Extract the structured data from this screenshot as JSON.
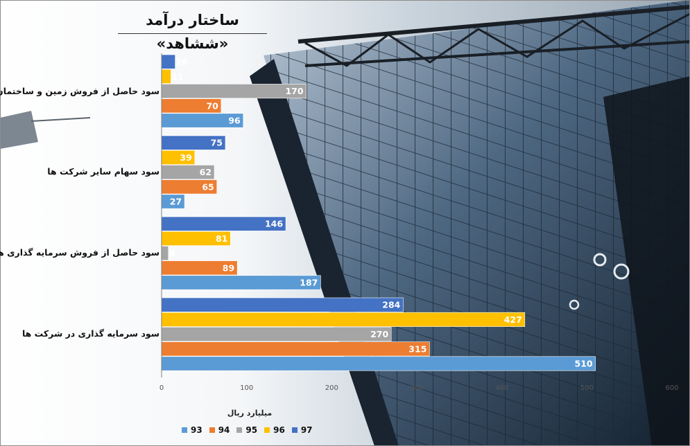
{
  "chart_data": {
    "type": "bar",
    "orientation": "horizontal",
    "title": "ساختار درآمد «ششاهد»",
    "xlabel": "میلیارد ریال",
    "xlim": [
      0,
      600
    ],
    "xticks": [
      0,
      100,
      200,
      300,
      400,
      500,
      600
    ],
    "grid": false,
    "legend_position": "bottom",
    "categories": [
      "سود حاصل از فروش زمین و ساختمان",
      "سود سهام سایر شرکت ها",
      "سود حاصل از فروش سرمایه گذاری ها",
      "سود سرمایه گذاری در شرکت ها"
    ],
    "series": [
      {
        "name": "97",
        "color": "#4472C4",
        "values": [
          16,
          75,
          146,
          284
        ]
      },
      {
        "name": "96",
        "color": "#FFC000",
        "values": [
          11,
          39,
          81,
          427
        ]
      },
      {
        "name": "95",
        "color": "#A5A5A5",
        "values": [
          170,
          62,
          8,
          270
        ]
      },
      {
        "name": "94",
        "color": "#ED7D31",
        "values": [
          70,
          65,
          89,
          315
        ]
      },
      {
        "name": "93",
        "color": "#5B9BD5",
        "values": [
          96,
          27,
          187,
          510
        ]
      }
    ]
  }
}
